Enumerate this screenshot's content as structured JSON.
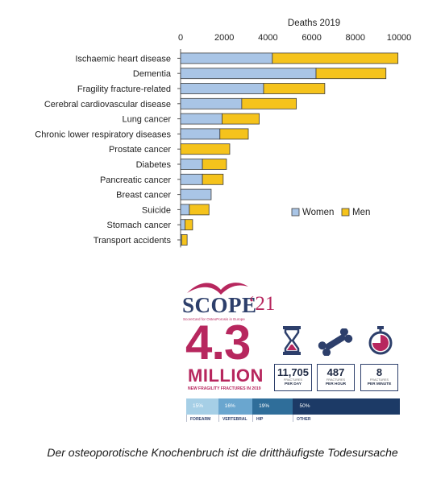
{
  "chart_data": {
    "type": "bar",
    "orientation": "horizontal",
    "stacked": true,
    "title": "Deaths 2019",
    "xlim": [
      0,
      10000
    ],
    "xticks": [
      "0",
      "2000",
      "4000",
      "6000",
      "8000",
      "10000"
    ],
    "axis_position": "top",
    "legend_position": "bottom-right",
    "categories": [
      "Ischaemic heart disease",
      "Dementia",
      "Fragility fracture-related",
      "Cerebral cardiovascular disease",
      "Lung cancer",
      "Chronic lower respiratory diseases",
      "Prostate cancer",
      "Diabetes",
      "Pancreatic cancer",
      "Breast cancer",
      "Suicide",
      "Stomach cancer",
      "Transport accidents"
    ],
    "series": [
      {
        "name": "Women",
        "color": "#a9c5e6",
        "values": [
          4200,
          6200,
          3800,
          2800,
          1900,
          1800,
          0,
          1000,
          1000,
          1400,
          400,
          200,
          50
        ]
      },
      {
        "name": "Men",
        "color": "#f5c31c",
        "values": [
          5750,
          3200,
          2800,
          2500,
          1700,
          1300,
          2250,
          1100,
          950,
          0,
          900,
          350,
          250
        ]
      }
    ]
  },
  "infographic": {
    "logo": {
      "word": "SCOPE",
      "year": "‘21",
      "subtitle": "ScoreCard for OsteoPorosis in Europe"
    },
    "headline": {
      "number": "4.3",
      "unit": "MILLION",
      "caption": "NEW FRAGILITY FRACTURES IN 2019"
    },
    "stats": [
      {
        "icon": "hourglass-icon",
        "value": "11,705",
        "small": "FRACTURES",
        "per": "PER DAY"
      },
      {
        "icon": "bone-icon",
        "value": "487",
        "small": "FRACTURES",
        "per": "PER HOUR"
      },
      {
        "icon": "stopwatch-icon",
        "value": "8",
        "small": "FRACTURES",
        "per": "PER MINUTE"
      }
    ],
    "split": [
      {
        "percent": "15%",
        "share": 15,
        "label": "FOREARM",
        "color": "#a6cfe6"
      },
      {
        "percent": "16%",
        "share": 16,
        "label": "VERTEBRAL",
        "color": "#6aa6cf"
      },
      {
        "percent": "19%",
        "share": 19,
        "label": "HIP",
        "color": "#2f6e9a"
      },
      {
        "percent": "50%",
        "share": 50,
        "label": "OTHER",
        "color": "#1c3a66"
      }
    ]
  },
  "caption": "Der osteoporotische Knochenbruch ist die dritthäufigste Todesursache"
}
